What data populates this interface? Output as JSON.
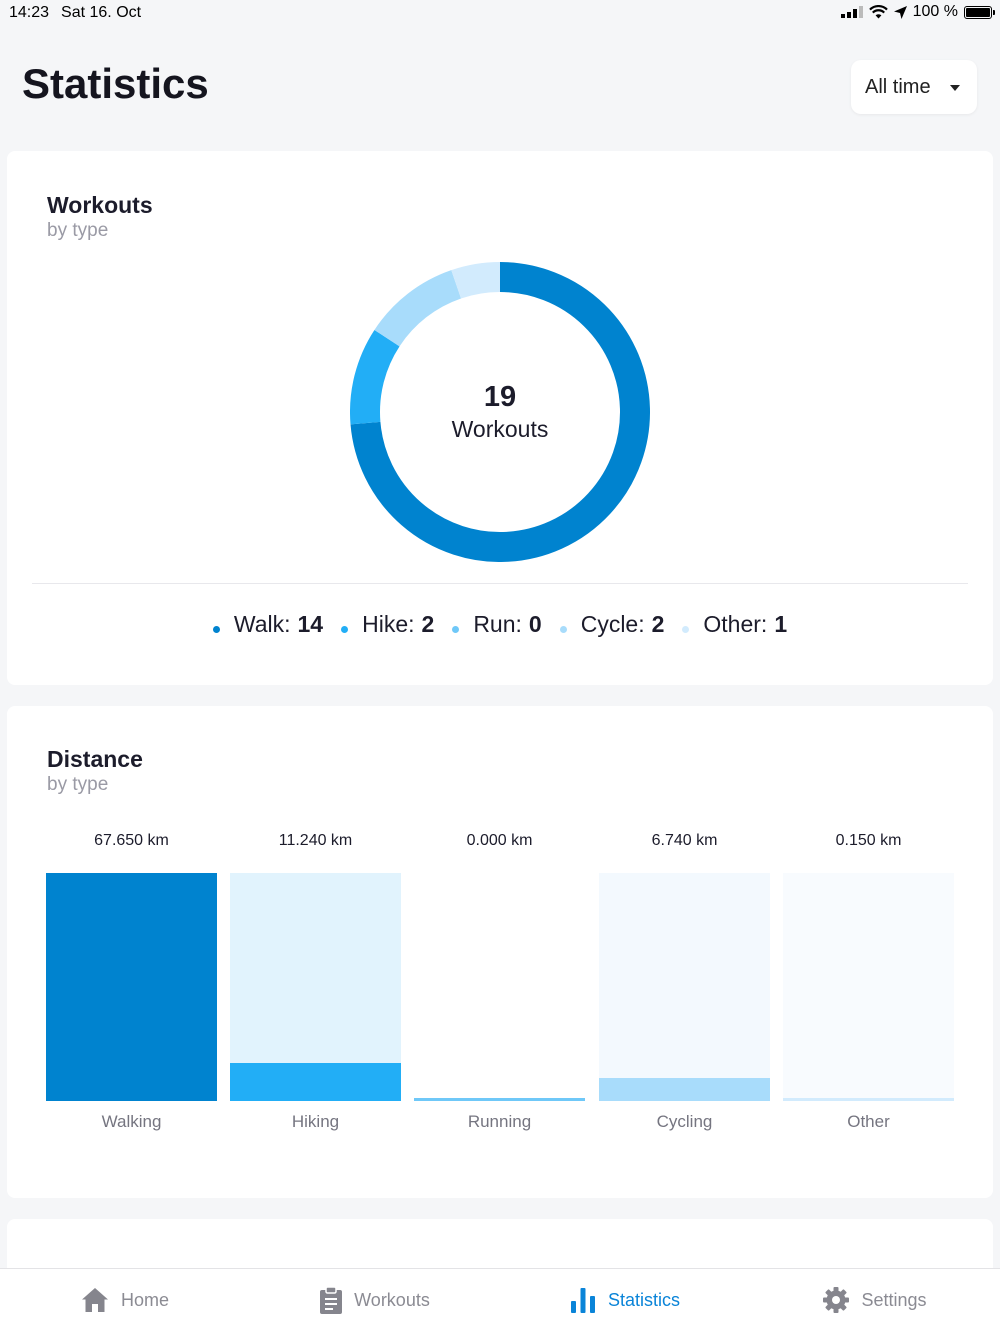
{
  "status_bar": {
    "time": "14:23",
    "date": "Sat 16. Oct",
    "battery": "100 %"
  },
  "header": {
    "title": "Statistics",
    "range": "All time"
  },
  "workouts_card": {
    "title": "Workouts",
    "subtitle": "by type",
    "total": "19",
    "total_label": "Workouts",
    "legend": [
      {
        "label": "Walk:",
        "value": "14",
        "color": "#0083cf"
      },
      {
        "label": "Hike:",
        "value": "2",
        "color": "#22aef6"
      },
      {
        "label": "Run:",
        "value": "0",
        "color": "#6fc8f8"
      },
      {
        "label": "Cycle:",
        "value": "2",
        "color": "#a8dcfb"
      },
      {
        "label": "Other:",
        "value": "1",
        "color": "#d2ebfd"
      }
    ]
  },
  "distance_card": {
    "title": "Distance",
    "subtitle": "by type"
  },
  "chart_data": [
    {
      "type": "pie",
      "categories": [
        "Walk",
        "Hike",
        "Run",
        "Cycle",
        "Other"
      ],
      "values": [
        14,
        2,
        0,
        2,
        1
      ],
      "colors": [
        "#0083cf",
        "#22aef6",
        "#6fc8f8",
        "#a8dcfb",
        "#d2ebfd"
      ],
      "legend": "bottom"
    },
    {
      "type": "bar",
      "categories": [
        "Walking",
        "Hiking",
        "Running",
        "Cycling",
        "Other"
      ],
      "values": [
        67.65,
        11.24,
        0.0,
        6.74,
        0.15
      ],
      "value_labels": [
        "67.650 km",
        "11.240 km",
        "0.000 km",
        "6.740 km",
        "0.150 km"
      ],
      "ylim": [
        0,
        67.65
      ],
      "fill_colors": [
        "#0083cf",
        "#22aef6",
        "#6fc8f8",
        "#a8dcfb",
        "#d2ebfd"
      ],
      "track_colors": [
        "#e6f4fc",
        "#e1f3fd",
        "#ffffff",
        "#f3f9fe",
        "#f8fbfe"
      ],
      "grid": false
    }
  ],
  "tab_bar": {
    "tabs": [
      {
        "label": "Home",
        "icon": "home-icon",
        "active": false
      },
      {
        "label": "Workouts",
        "icon": "clipboard-icon",
        "active": false
      },
      {
        "label": "Statistics",
        "icon": "bar-chart-icon",
        "active": true
      },
      {
        "label": "Settings",
        "icon": "gear-icon",
        "active": false
      }
    ]
  }
}
